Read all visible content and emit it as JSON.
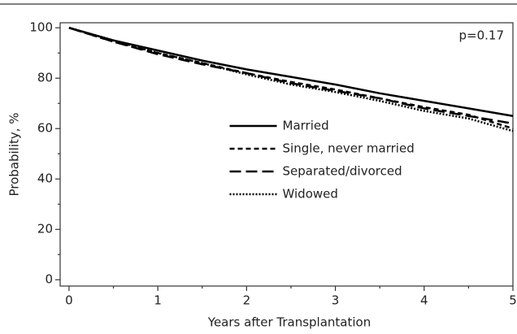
{
  "chart_data": {
    "type": "line",
    "x": [
      0,
      0.5,
      1,
      1.5,
      2,
      2.5,
      3,
      3.5,
      4,
      4.5,
      5
    ],
    "series": [
      {
        "name": "Married",
        "color": "#000000",
        "dash": "solid",
        "values": [
          100,
          95,
          91,
          87,
          83.5,
          80.5,
          77.5,
          74,
          71,
          68,
          65
        ]
      },
      {
        "name": "Single, never married",
        "color": "#000000",
        "dash": "short",
        "values": [
          100,
          94.5,
          90,
          86,
          82,
          78.5,
          75.5,
          72,
          68.5,
          65.5,
          60
        ]
      },
      {
        "name": "Separated/divorced",
        "color": "#000000",
        "dash": "long",
        "values": [
          100,
          94.5,
          89.5,
          85.5,
          82,
          78,
          75,
          72,
          68,
          65,
          62
        ]
      },
      {
        "name": "Widowed",
        "color": "#000000",
        "dash": "dotted",
        "values": [
          100,
          95,
          90,
          86,
          81.5,
          77.5,
          74.5,
          71,
          67,
          64,
          59
        ]
      }
    ],
    "xlabel": "Years after Transplantation",
    "ylabel": "Probability, %",
    "annotation": "p=0.17",
    "xlim": [
      -0.1,
      5
    ],
    "ylim": [
      -2.5,
      102
    ],
    "xticks": [
      0,
      1,
      2,
      3,
      4,
      5
    ],
    "yticks": [
      0,
      20,
      40,
      60,
      80,
      100
    ],
    "legend": "center",
    "grid": false
  }
}
